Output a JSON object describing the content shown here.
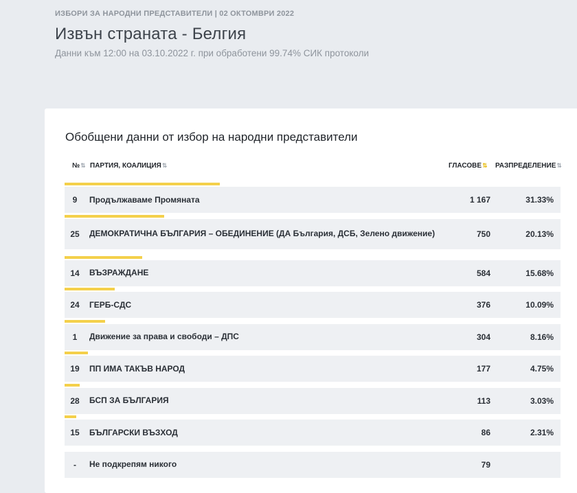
{
  "header": {
    "kicker": "ИЗБОРИ ЗА НАРОДНИ ПРЕДСТАВИТЕЛИ | 02 ОКТОМВРИ 2022",
    "title": "Извън страната - Белгия",
    "subtitle": "Данни към 12:00 на 03.10.2022 г. при обработени 99.74% СИК протоколи"
  },
  "card": {
    "title": "Обобщени данни от избор на народни представители"
  },
  "table": {
    "columns": {
      "number": "№",
      "party": "ПАРТИЯ, КОАЛИЦИЯ",
      "votes": "ГЛАСОВЕ",
      "share": "РАЗПРЕДЕЛЕНИЕ"
    },
    "sort_icons": {
      "default": "⇅",
      "active": "⇅"
    },
    "rows": [
      {
        "number": "9",
        "party": "Продължаваме Промяната",
        "votes": "1 167",
        "share": "31.33%",
        "share_value": 31.33
      },
      {
        "number": "25",
        "party": "ДЕМОКРАТИЧНА БЪЛГАРИЯ – ОБЕДИНЕНИЕ (ДА България, ДСБ, Зелено движение)",
        "votes": "750",
        "share": "20.13%",
        "share_value": 20.13
      },
      {
        "number": "14",
        "party": "ВЪЗРАЖДАНЕ",
        "votes": "584",
        "share": "15.68%",
        "share_value": 15.68
      },
      {
        "number": "24",
        "party": "ГЕРБ-СДС",
        "votes": "376",
        "share": "10.09%",
        "share_value": 10.09
      },
      {
        "number": "1",
        "party": "Движение за права и свободи – ДПС",
        "votes": "304",
        "share": "8.16%",
        "share_value": 8.16
      },
      {
        "number": "19",
        "party": "ПП ИМА ТАКЪВ НАРОД",
        "votes": "177",
        "share": "4.75%",
        "share_value": 4.75
      },
      {
        "number": "28",
        "party": "БСП ЗА БЪЛГАРИЯ",
        "votes": "113",
        "share": "3.03%",
        "share_value": 3.03
      },
      {
        "number": "15",
        "party": "БЪЛГАРСКИ ВЪЗХОД",
        "votes": "86",
        "share": "2.31%",
        "share_value": 2.31
      },
      {
        "number": "-",
        "party": "Не подкрепям никого",
        "votes": "79",
        "share": "",
        "share_value": 0
      }
    ]
  },
  "colors": {
    "bar": "#f4d04b",
    "background": "#e9ecf0",
    "row": "#eef0f3"
  }
}
